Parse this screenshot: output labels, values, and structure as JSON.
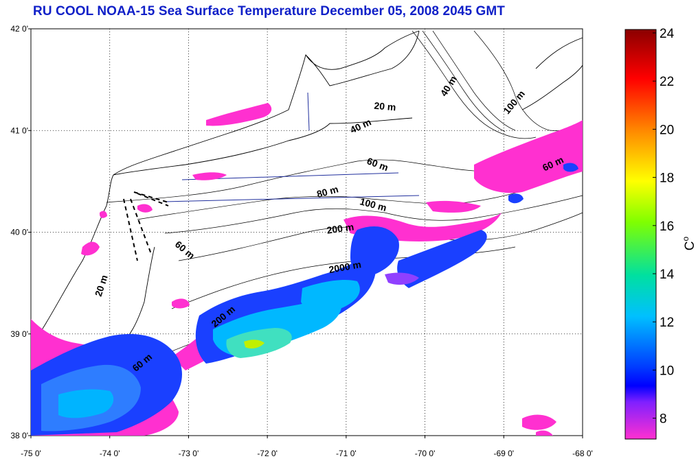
{
  "title": "RU COOL  NOAA-15 Sea Surface Temperature December 05, 2008 2045 GMT",
  "map": {
    "lon_range": [
      -75,
      -68
    ],
    "lat_range": [
      38,
      42
    ],
    "x_ticks": [
      "-75 0'",
      "-74 0'",
      "-73 0'",
      "-72 0'",
      "-71 0'",
      "-70 0'",
      "-69 0'",
      "-68 0'"
    ],
    "y_ticks": [
      "38 0'",
      "39 0'",
      "40 0'",
      "41 0'",
      "42 0'"
    ],
    "grid": "dotted",
    "contour_labels": [
      "40 m",
      "20 m",
      "40 m",
      "100 m",
      "60 m",
      "60 m",
      "80 m",
      "100 m",
      "200 m",
      "60 m",
      "2000 m",
      "20 m",
      "200 m",
      "60 m"
    ]
  },
  "colorbar": {
    "ticks": [
      "24",
      "22",
      "20",
      "18",
      "16",
      "14",
      "12",
      "10",
      "8"
    ],
    "unit_label": "C",
    "unit_superscript": "o",
    "colors": [
      "#8b0000",
      "#ff0000",
      "#ff8c00",
      "#ffff00",
      "#80ff00",
      "#00e0a0",
      "#00c0ff",
      "#0040ff",
      "#0000ff",
      "#ff30d0"
    ]
  }
}
